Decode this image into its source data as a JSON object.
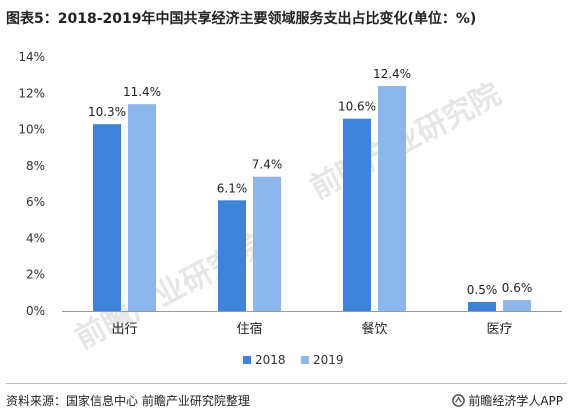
{
  "title": "图表5：2018-2019年中国共享经济主要领域服务支出占比变化(单位：%)",
  "source": "资料来源：国家信息中心  前瞻产业研究院整理",
  "brand": "前瞻经济学人APP",
  "watermark": "前瞻产业研究院",
  "colors": {
    "2018": "#3E82DA",
    "2019": "#8DB6EC"
  },
  "chart_data": {
    "type": "bar",
    "title": "图表5：2018-2019年中国共享经济主要领域服务支出占比变化(单位：%)",
    "categories": [
      "出行",
      "住宿",
      "餐饮",
      "医疗"
    ],
    "series": [
      {
        "name": "2018",
        "values": [
          10.3,
          6.1,
          10.6,
          0.5
        ],
        "labels": [
          "10.3%",
          "6.1%",
          "10.6%",
          "0.5%"
        ]
      },
      {
        "name": "2019",
        "values": [
          11.4,
          7.4,
          12.4,
          0.6
        ],
        "labels": [
          "11.4%",
          "7.4%",
          "12.4%",
          "0.6%"
        ]
      }
    ],
    "yticks": [
      "0%",
      "2%",
      "4%",
      "6%",
      "8%",
      "10%",
      "12%",
      "14%"
    ],
    "ylim": [
      0,
      14
    ],
    "xlabel": "",
    "ylabel": "",
    "grid": false,
    "legend": "bottom-center"
  }
}
